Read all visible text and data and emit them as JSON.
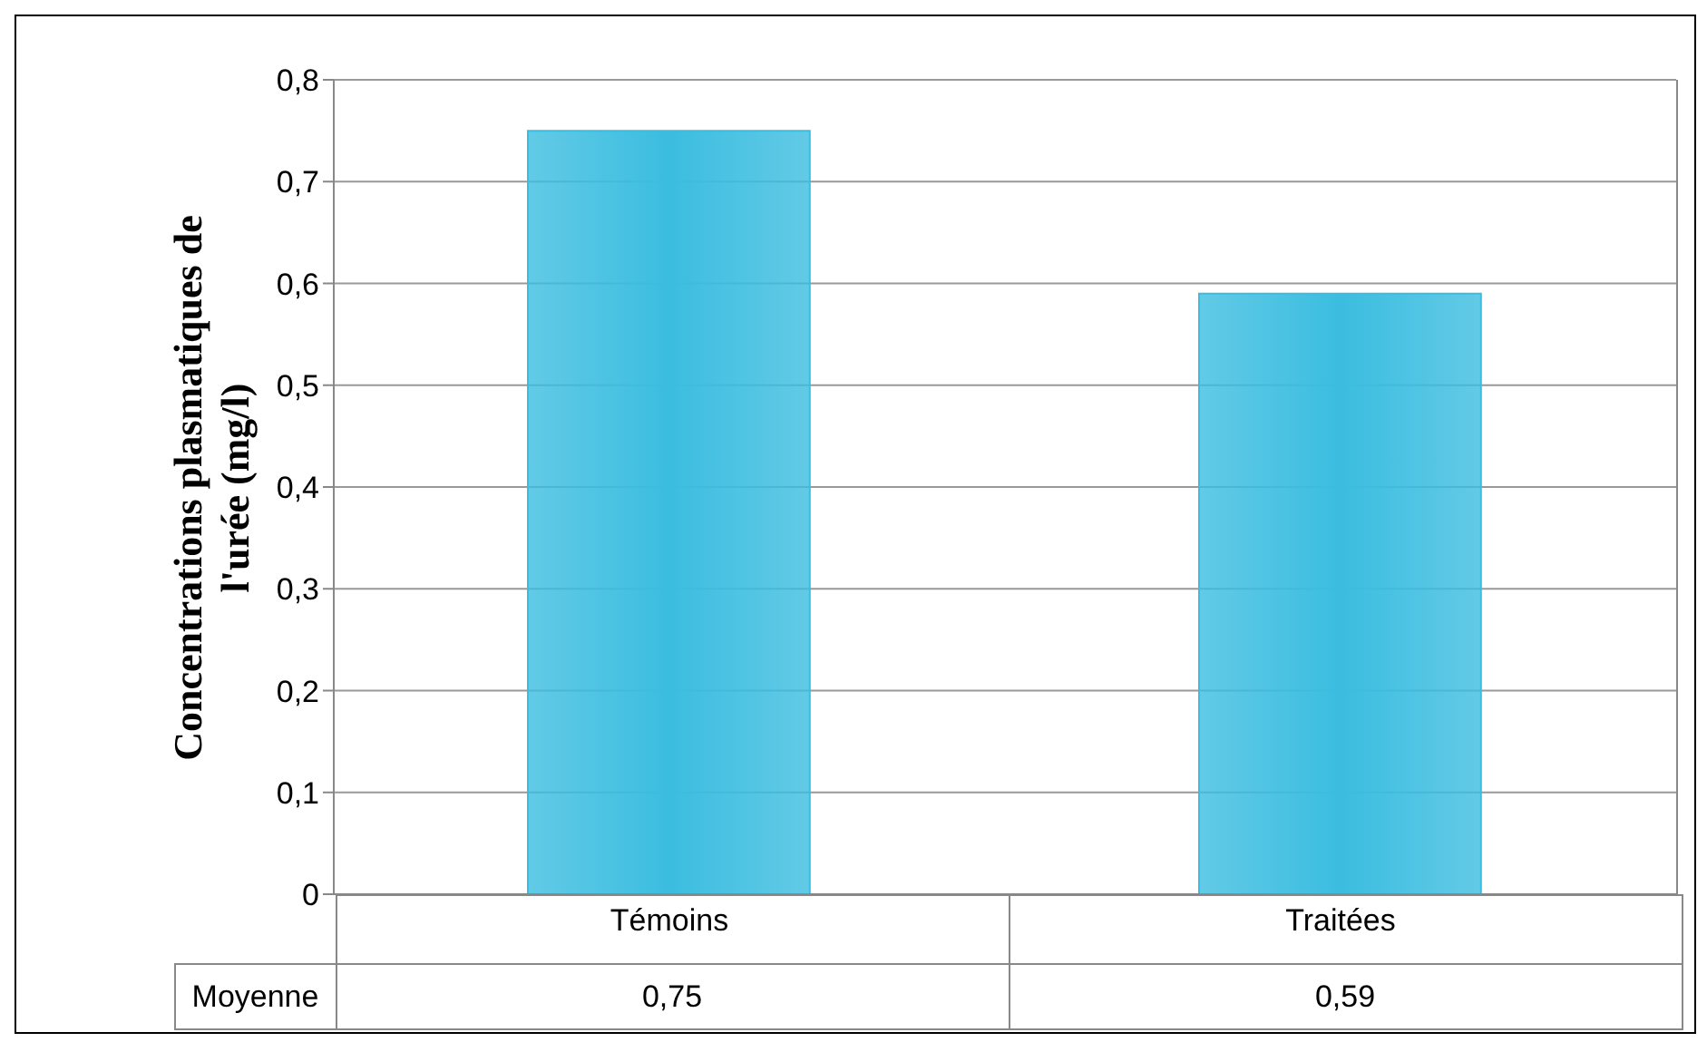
{
  "chart_data": {
    "type": "bar",
    "ylabel": "Concentrations plasmatiques de l'urée (mg/l)",
    "categories": [
      "Témoins",
      "Traitées"
    ],
    "series": [
      {
        "name": "Moyenne",
        "color": "#3bbde0",
        "values": [
          0.75,
          0.59
        ],
        "value_labels": [
          "0,75",
          "0,59"
        ]
      }
    ],
    "ylim": [
      0,
      0.8
    ],
    "yticks": [
      0,
      {
        "value": 0.1,
        "label": "0,1"
      },
      {
        "value": 0.2,
        "label": "0,2"
      },
      {
        "value": 0.3,
        "label": "0,3"
      },
      {
        "value": 0.4,
        "label": "0,4"
      },
      {
        "value": 0.5,
        "label": "0,5"
      },
      {
        "value": 0.6,
        "label": "0,6"
      },
      {
        "value": 0.7,
        "label": "0,7"
      },
      {
        "value": 0.8,
        "label": "0,8"
      }
    ],
    "grid": "y"
  }
}
